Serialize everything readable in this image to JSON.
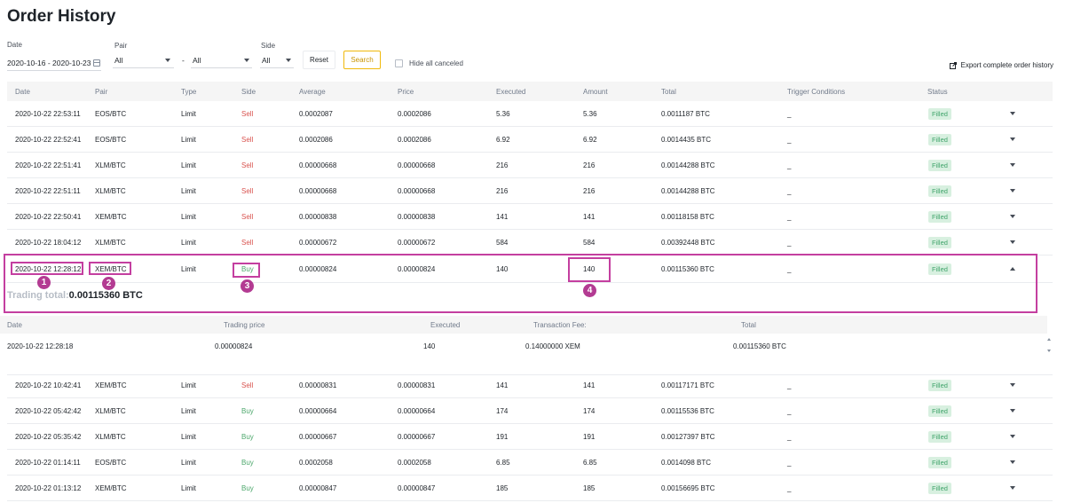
{
  "page": {
    "title": "Order History"
  },
  "filters": {
    "date_label": "Date",
    "date_value": "2020-10-16 - 2020-10-23",
    "pair_label": "Pair",
    "pair_base": "All",
    "pair_separator": "-",
    "pair_quote": "All",
    "side_label": "Side",
    "side_value": "All",
    "reset_label": "Reset",
    "search_label": "Search",
    "hide_canceled_label": "Hide all canceled"
  },
  "export_label": "Export complete order history",
  "table": {
    "headers": [
      "Date",
      "Pair",
      "Type",
      "Side",
      "Average",
      "Price",
      "Executed",
      "Amount",
      "Total",
      "Trigger Conditions",
      "Status"
    ],
    "rows_top": [
      {
        "date": "2020-10-22 22:53:11",
        "pair": "EOS/BTC",
        "type": "Limit",
        "side": "Sell",
        "average": "0.0002087",
        "price": "0.0002086",
        "executed": "5.36",
        "amount": "5.36",
        "total": "0.0011187 BTC",
        "trigger": "_",
        "status": "Filled"
      },
      {
        "date": "2020-10-22 22:52:41",
        "pair": "EOS/BTC",
        "type": "Limit",
        "side": "Sell",
        "average": "0.0002086",
        "price": "0.0002086",
        "executed": "6.92",
        "amount": "6.92",
        "total": "0.0014435 BTC",
        "trigger": "_",
        "status": "Filled"
      },
      {
        "date": "2020-10-22 22:51:41",
        "pair": "XLM/BTC",
        "type": "Limit",
        "side": "Sell",
        "average": "0.00000668",
        "price": "0.00000668",
        "executed": "216",
        "amount": "216",
        "total": "0.00144288 BTC",
        "trigger": "_",
        "status": "Filled"
      },
      {
        "date": "2020-10-22 22:51:11",
        "pair": "XLM/BTC",
        "type": "Limit",
        "side": "Sell",
        "average": "0.00000668",
        "price": "0.00000668",
        "executed": "216",
        "amount": "216",
        "total": "0.00144288 BTC",
        "trigger": "_",
        "status": "Filled"
      },
      {
        "date": "2020-10-22 22:50:41",
        "pair": "XEM/BTC",
        "type": "Limit",
        "side": "Sell",
        "average": "0.00000838",
        "price": "0.00000838",
        "executed": "141",
        "amount": "141",
        "total": "0.00118158 BTC",
        "trigger": "_",
        "status": "Filled"
      },
      {
        "date": "2020-10-22 18:04:12",
        "pair": "XLM/BTC",
        "type": "Limit",
        "side": "Sell",
        "average": "0.00000672",
        "price": "0.00000672",
        "executed": "584",
        "amount": "584",
        "total": "0.00392448 BTC",
        "trigger": "_",
        "status": "Filled"
      }
    ],
    "expanded_row": {
      "date": "2020-10-22 12:28:12",
      "pair": "XEM/BTC",
      "type": "Limit",
      "side": "Buy",
      "average": "0.00000824",
      "price": "0.00000824",
      "executed": "140",
      "amount": "140",
      "total": "0.00115360 BTC",
      "trigger": "_",
      "status": "Filled"
    },
    "rows_bottom": [
      {
        "date": "2020-10-22 10:42:41",
        "pair": "XEM/BTC",
        "type": "Limit",
        "side": "Sell",
        "average": "0.00000831",
        "price": "0.00000831",
        "executed": "141",
        "amount": "141",
        "total": "0.00117171 BTC",
        "trigger": "_",
        "status": "Filled"
      },
      {
        "date": "2020-10-22 05:42:42",
        "pair": "XLM/BTC",
        "type": "Limit",
        "side": "Buy",
        "average": "0.00000664",
        "price": "0.00000664",
        "executed": "174",
        "amount": "174",
        "total": "0.00115536 BTC",
        "trigger": "_",
        "status": "Filled"
      },
      {
        "date": "2020-10-22 05:35:42",
        "pair": "XLM/BTC",
        "type": "Limit",
        "side": "Buy",
        "average": "0.00000667",
        "price": "0.00000667",
        "executed": "191",
        "amount": "191",
        "total": "0.00127397 BTC",
        "trigger": "_",
        "status": "Filled"
      },
      {
        "date": "2020-10-22 01:14:11",
        "pair": "EOS/BTC",
        "type": "Limit",
        "side": "Buy",
        "average": "0.0002058",
        "price": "0.0002058",
        "executed": "6.85",
        "amount": "6.85",
        "total": "0.0014098 BTC",
        "trigger": "_",
        "status": "Filled"
      },
      {
        "date": "2020-10-22 01:13:12",
        "pair": "XEM/BTC",
        "type": "Limit",
        "side": "Buy",
        "average": "0.00000847",
        "price": "0.00000847",
        "executed": "185",
        "amount": "185",
        "total": "0.00156695 BTC",
        "trigger": "_",
        "status": "Filled"
      }
    ]
  },
  "detail": {
    "trading_total_label": "Trading total:",
    "trading_total_value": "0.00115360 BTC",
    "headers": [
      "Date",
      "Trading price",
      "Executed",
      "Transaction Fee:",
      "Total"
    ],
    "row": {
      "date": "2020-10-22 12:28:18",
      "trading_price": "0.00000824",
      "executed": "140",
      "fee": "0.14000000 XEM",
      "total": "0.00115360 BTC"
    }
  },
  "annotations": [
    "1",
    "2",
    "3",
    "4"
  ],
  "colors": {
    "accent": "#f0b90b",
    "sell": "#d9534f",
    "buy": "#4ea86d",
    "filled_bg": "#d8f0e0",
    "highlight": "#c43fa0",
    "marker": "#b33b92"
  }
}
